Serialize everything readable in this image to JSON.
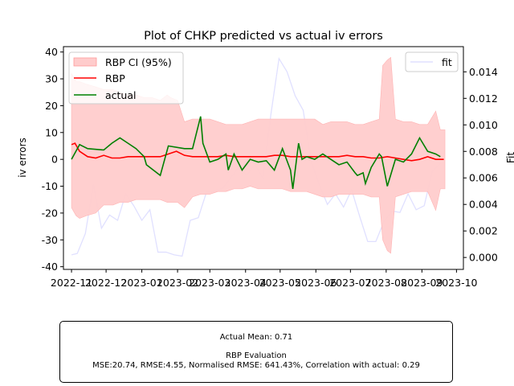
{
  "chart_data": {
    "type": "line",
    "title": "Plot of CHKP predicted vs actual iv errors",
    "ylabel": "iv errors",
    "y2label": "Fit",
    "xlabel": "",
    "ylim": [
      -41,
      42
    ],
    "y2lim": [
      -0.0009,
      0.0159
    ],
    "xlim": [
      "2022-10-25",
      "2023-10-07"
    ],
    "grid": false,
    "x_ticks": [
      "2022-11-01",
      "2022-12-01",
      "2023-01-01",
      "2023-02-01",
      "2023-03-01",
      "2023-04-01",
      "2023-05-01",
      "2023-06-01",
      "2023-07-01",
      "2023-08-01",
      "2023-09-01",
      "2023-10-01"
    ],
    "x_tick_labels": [
      "2022-11",
      "2022-12",
      "2023-01",
      "2023-02",
      "2023-03",
      "2023-04",
      "2023-05",
      "2023-06",
      "2023-07",
      "2023-08",
      "2023-09",
      "2023-10"
    ],
    "y_ticks": [
      -40,
      -30,
      -20,
      -10,
      0,
      10,
      20,
      30,
      40
    ],
    "y2_ticks": [
      0.0,
      0.002,
      0.004,
      0.006,
      0.008,
      0.01,
      0.012,
      0.014
    ],
    "y2_tick_labels": [
      "0.000",
      "0.002",
      "0.004",
      "0.006",
      "0.008",
      "0.010",
      "0.012",
      "0.014"
    ],
    "legend_left": {
      "placement": "upper left",
      "entries": [
        "RBP CI (95%)",
        "RBP",
        "actual"
      ]
    },
    "legend_right": {
      "placement": "upper right",
      "entries": [
        "fit"
      ]
    },
    "colors": {
      "ci": "#ffcccc",
      "rbp": "#ff0000",
      "actual": "#008000",
      "fit": "#e0e0ff"
    },
    "series": [
      {
        "name": "RBP CI (95%)",
        "type": "band",
        "axis": "left",
        "x": [
          "2022-11-01",
          "2022-11-05",
          "2022-11-08",
          "2022-11-14",
          "2022-11-22",
          "2022-11-29",
          "2022-12-07",
          "2022-12-13",
          "2022-12-20",
          "2022-12-27",
          "2023-01-03",
          "2023-01-10",
          "2023-01-17",
          "2023-01-23",
          "2023-01-26",
          "2023-02-01",
          "2023-02-07",
          "2023-02-14",
          "2023-02-21",
          "2023-03-01",
          "2023-03-08",
          "2023-03-15",
          "2023-03-22",
          "2023-03-29",
          "2023-04-05",
          "2023-04-12",
          "2023-04-19",
          "2023-04-26",
          "2023-05-03",
          "2023-05-10",
          "2023-05-17",
          "2023-05-24",
          "2023-05-31",
          "2023-06-07",
          "2023-06-14",
          "2023-06-21",
          "2023-06-28",
          "2023-07-05",
          "2023-07-12",
          "2023-07-19",
          "2023-07-26",
          "2023-07-29",
          "2023-08-02",
          "2023-08-05",
          "2023-08-09",
          "2023-08-16",
          "2023-08-23",
          "2023-08-30",
          "2023-09-06",
          "2023-09-13",
          "2023-09-17",
          "2023-09-21"
        ],
        "upper": [
          32,
          29,
          29,
          28,
          27,
          26,
          26,
          25,
          24,
          24,
          23,
          23,
          22,
          24,
          23,
          22,
          14,
          15,
          15,
          15,
          14,
          13,
          13,
          13,
          14,
          15,
          15,
          15,
          15,
          15,
          15,
          15,
          15,
          13,
          14,
          14,
          14,
          13,
          13,
          14,
          15,
          35,
          37,
          38,
          15,
          14,
          14,
          13,
          13,
          18,
          11,
          11
        ],
        "lower": [
          -18,
          -21,
          -22,
          -21,
          -20,
          -17,
          -17,
          -16,
          -16,
          -15,
          -15,
          -15,
          -15,
          -16,
          -16,
          -16,
          -18,
          -14,
          -13,
          -13,
          -12,
          -12,
          -11,
          -11,
          -10,
          -11,
          -11,
          -11,
          -11,
          -12,
          -12,
          -12,
          -13,
          -14,
          -14,
          -13,
          -13,
          -13,
          -13,
          -14,
          -14,
          -30,
          -34,
          -35,
          -14,
          -13,
          -12,
          -12,
          -12,
          -19,
          -11,
          -11
        ]
      },
      {
        "name": "RBP",
        "axis": "left",
        "color": "#ff0000",
        "x": [
          "2022-11-01",
          "2022-11-04",
          "2022-11-08",
          "2022-11-15",
          "2022-11-22",
          "2022-11-29",
          "2022-12-06",
          "2022-12-13",
          "2022-12-20",
          "2022-12-27",
          "2023-01-03",
          "2023-01-10",
          "2023-01-17",
          "2023-01-24",
          "2023-01-31",
          "2023-02-07",
          "2023-02-14",
          "2023-02-21",
          "2023-03-01",
          "2023-03-08",
          "2023-03-15",
          "2023-03-22",
          "2023-03-29",
          "2023-04-05",
          "2023-04-12",
          "2023-04-19",
          "2023-04-26",
          "2023-05-03",
          "2023-05-10",
          "2023-05-17",
          "2023-05-24",
          "2023-05-31",
          "2023-06-07",
          "2023-06-14",
          "2023-06-21",
          "2023-06-28",
          "2023-07-05",
          "2023-07-12",
          "2023-07-19",
          "2023-07-26",
          "2023-08-02",
          "2023-08-09",
          "2023-08-16",
          "2023-08-23",
          "2023-08-30",
          "2023-09-06",
          "2023-09-13",
          "2023-09-20"
        ],
        "y": [
          5.5,
          6,
          3,
          1,
          0.5,
          1.5,
          0.5,
          0.5,
          1,
          1,
          1,
          1,
          1,
          2,
          3,
          1.5,
          1,
          1,
          1,
          1,
          1.5,
          1,
          1,
          1,
          1,
          1,
          1.5,
          1.5,
          1,
          1,
          1,
          1,
          1,
          1,
          1,
          1.5,
          1,
          1,
          0.5,
          0.5,
          1,
          0.5,
          0,
          -0.5,
          0,
          1,
          0,
          0
        ]
      },
      {
        "name": "actual",
        "axis": "left",
        "color": "#008000",
        "x": [
          "2022-11-01",
          "2022-11-08",
          "2022-11-15",
          "2022-11-29",
          "2022-12-06",
          "2022-12-13",
          "2022-12-20",
          "2022-12-27",
          "2023-01-03",
          "2023-01-05",
          "2023-01-17",
          "2023-01-24",
          "2023-02-07",
          "2023-02-14",
          "2023-02-21",
          "2023-02-23",
          "2023-03-01",
          "2023-03-08",
          "2023-03-15",
          "2023-03-17",
          "2023-03-22",
          "2023-03-29",
          "2023-04-05",
          "2023-04-12",
          "2023-04-19",
          "2023-04-26",
          "2023-05-03",
          "2023-05-10",
          "2023-05-12",
          "2023-05-17",
          "2023-05-20",
          "2023-05-24",
          "2023-05-31",
          "2023-06-07",
          "2023-06-14",
          "2023-06-21",
          "2023-06-28",
          "2023-07-05",
          "2023-07-07",
          "2023-07-12",
          "2023-07-14",
          "2023-07-19",
          "2023-07-26",
          "2023-07-28",
          "2023-08-02",
          "2023-08-09",
          "2023-08-16",
          "2023-08-23",
          "2023-08-30",
          "2023-09-06",
          "2023-09-13",
          "2023-09-17"
        ],
        "y": [
          0,
          5.5,
          4,
          3.5,
          6,
          8,
          6,
          4,
          1,
          -2,
          -6,
          5,
          4,
          4,
          16,
          6,
          -1,
          0,
          2,
          -4,
          2,
          -4,
          0,
          -1,
          -0.5,
          -4,
          4,
          -4,
          -11,
          6,
          0,
          1,
          0,
          2,
          0,
          -2,
          -1,
          -5,
          -6,
          -5,
          -9,
          -3,
          2,
          1,
          -10,
          0,
          -1,
          2,
          8,
          3,
          2,
          1
        ]
      },
      {
        "name": "fit",
        "axis": "right",
        "color": "#e0e0ff",
        "x": [
          "2022-11-01",
          "2022-11-06",
          "2022-11-13",
          "2022-11-20",
          "2022-11-27",
          "2022-12-04",
          "2022-12-11",
          "2022-12-18",
          "2022-12-25",
          "2023-01-01",
          "2023-01-08",
          "2023-01-15",
          "2023-01-22",
          "2023-01-29",
          "2023-02-05",
          "2023-02-12",
          "2023-02-19",
          "2023-02-26",
          "2023-03-05",
          "2023-03-12",
          "2023-03-19",
          "2023-03-26",
          "2023-04-02",
          "2023-04-09",
          "2023-04-16",
          "2023-04-23",
          "2023-04-30",
          "2023-05-07",
          "2023-05-14",
          "2023-05-21",
          "2023-05-28",
          "2023-06-04",
          "2023-06-11",
          "2023-06-18",
          "2023-06-25",
          "2023-07-02",
          "2023-07-09",
          "2023-07-16",
          "2023-07-23",
          "2023-07-30",
          "2023-08-06",
          "2023-08-13",
          "2023-08-20",
          "2023-08-27",
          "2023-09-03",
          "2023-09-10",
          "2023-09-17"
        ],
        "y": [
          0.0002,
          0.0003,
          0.0018,
          0.0055,
          0.0022,
          0.0032,
          0.0028,
          0.0048,
          0.0039,
          0.0028,
          0.0036,
          0.0004,
          0.0004,
          0.0002,
          0.0001,
          0.0028,
          0.003,
          0.0049,
          0.005,
          0.0052,
          0.006,
          0.0068,
          0.0062,
          0.007,
          0.006,
          0.0108,
          0.015,
          0.014,
          0.0122,
          0.0111,
          0.0072,
          0.0055,
          0.004,
          0.0048,
          0.0038,
          0.0051,
          0.0031,
          0.0012,
          0.0012,
          0.0027,
          0.0035,
          0.0034,
          0.0048,
          0.0036,
          0.0039,
          0.0065,
          0.0071
        ]
      }
    ],
    "summary": {
      "line1": "Actual Mean: 0.71",
      "line2": "RBP Evaluation",
      "line3": "MSE:20.74, RMSE:4.55, Normalised RMSE: 641.43%, Correlation with actual: 0.29"
    }
  }
}
